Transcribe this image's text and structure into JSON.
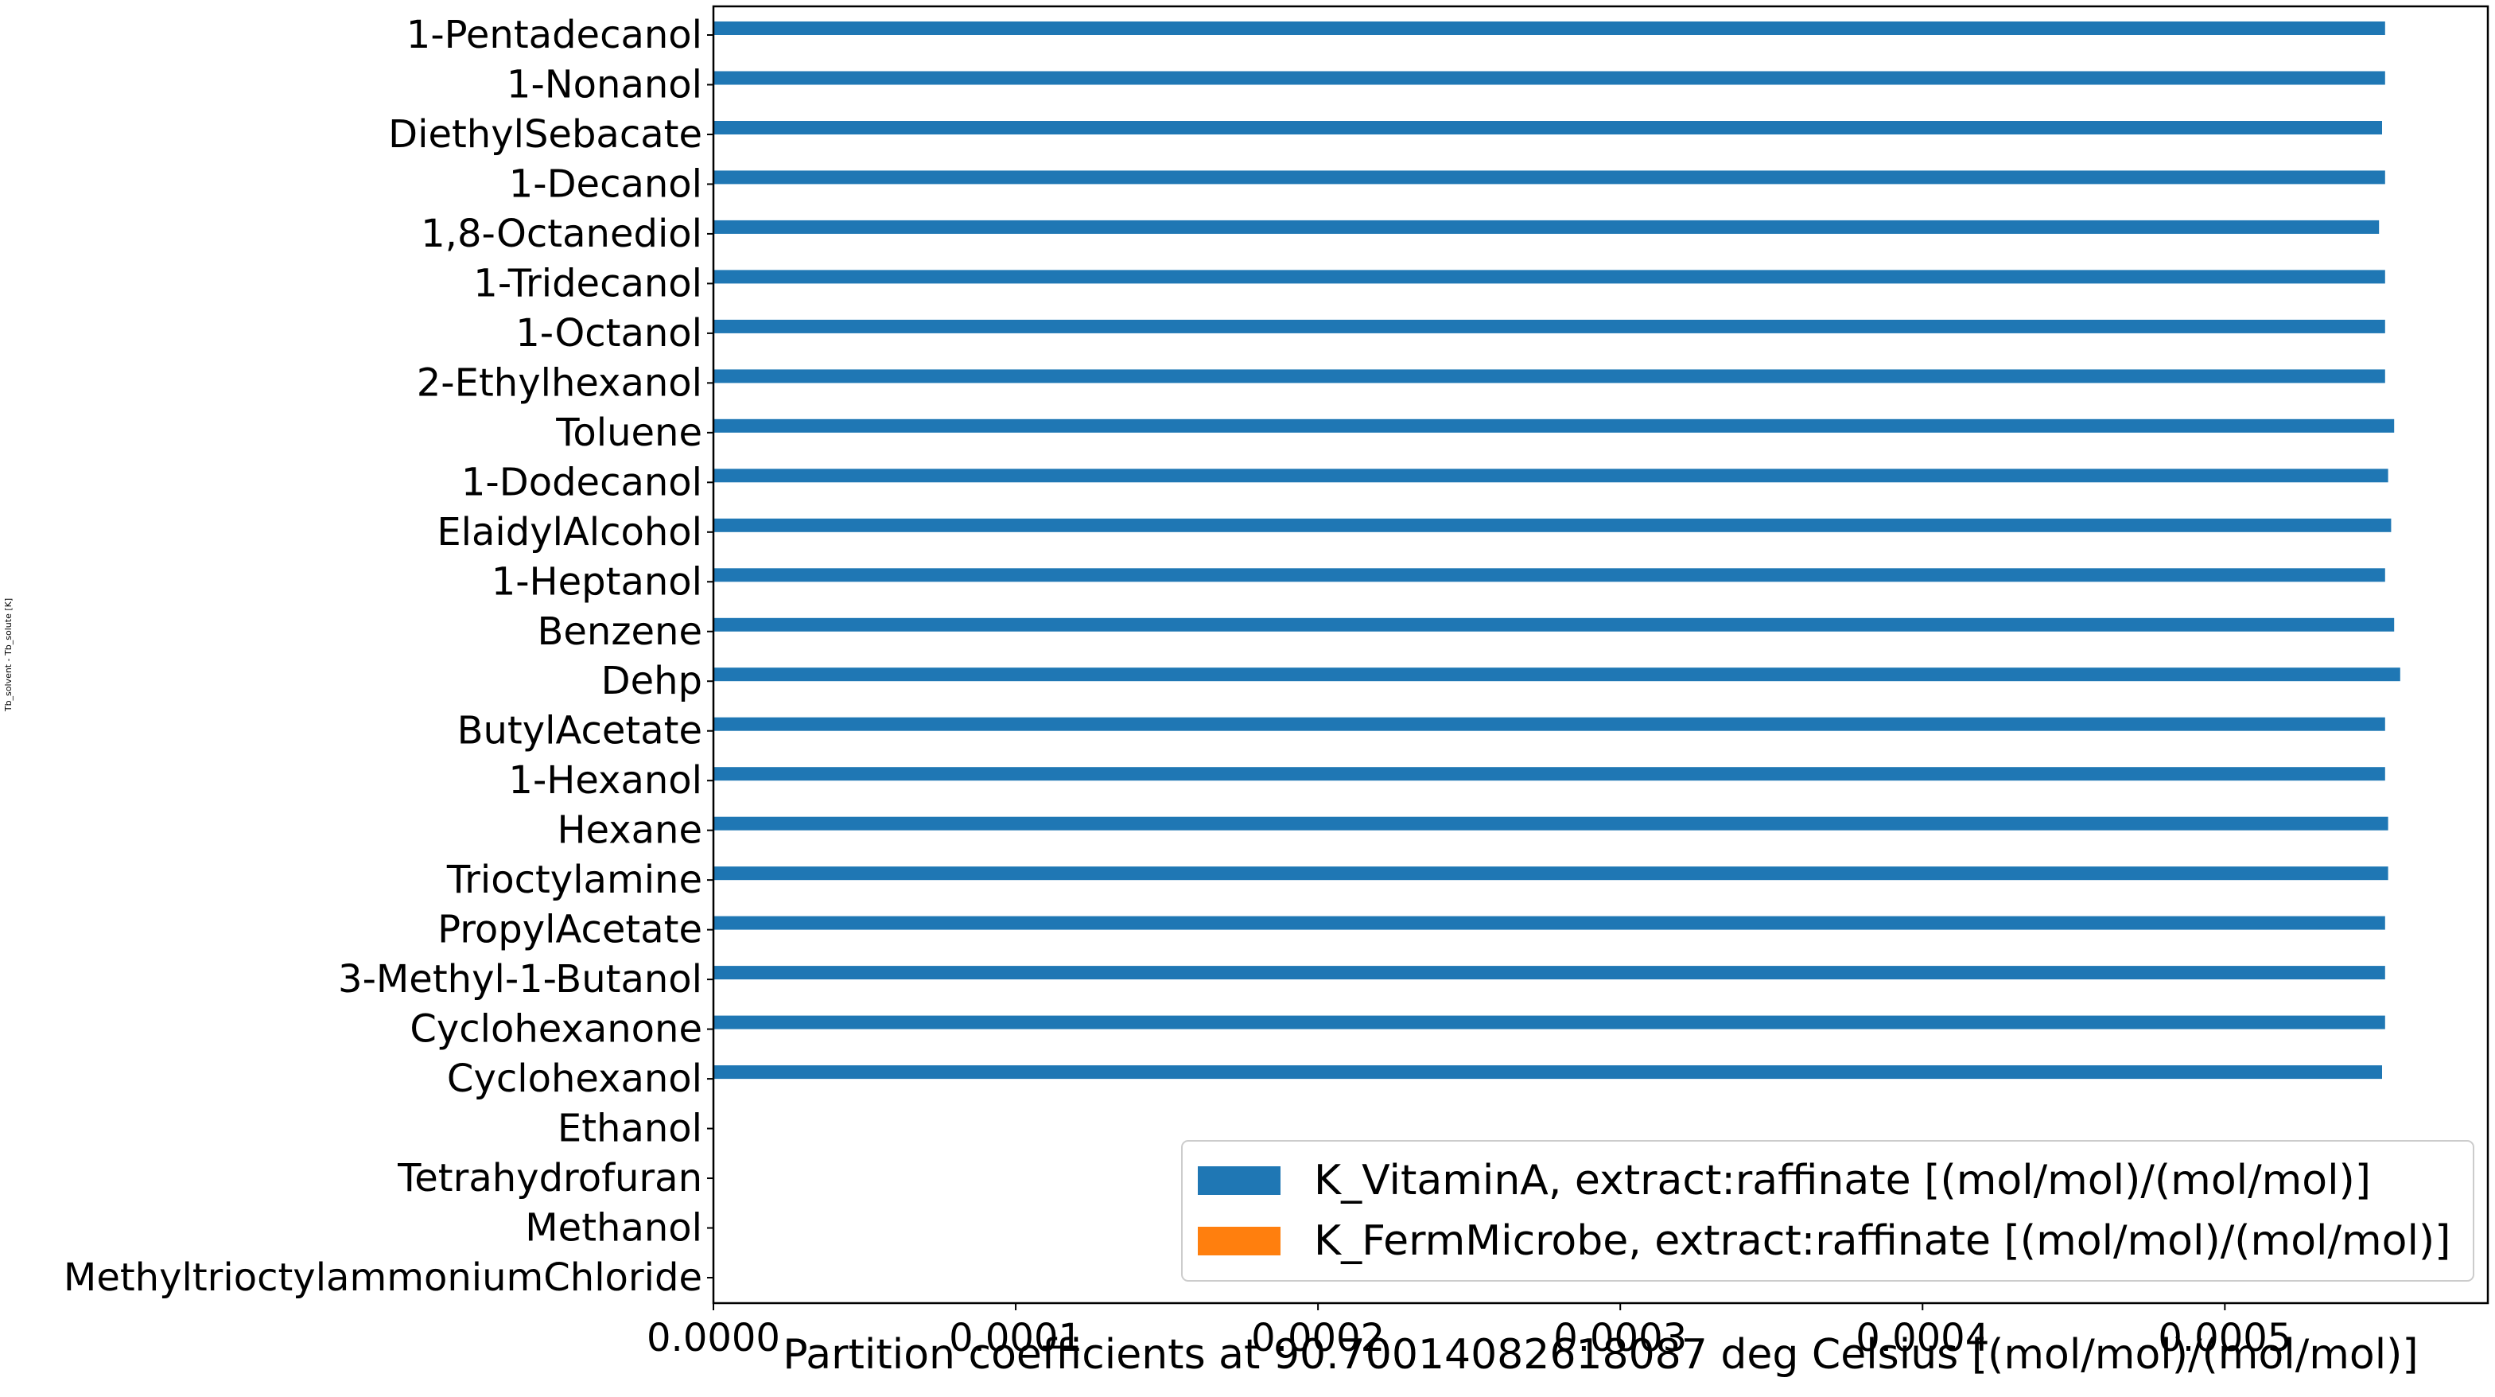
{
  "chart_data": {
    "type": "bar",
    "orientation": "horizontal",
    "categories": [
      "1-Pentadecanol",
      "1-Nonanol",
      "DiethylSebacate",
      "1-Decanol",
      "1,8-Octanediol",
      "1-Tridecanol",
      "1-Octanol",
      "2-Ethylhexanol",
      "Toluene",
      "1-Dodecanol",
      "ElaidylAlcohol",
      "1-Heptanol",
      "Benzene",
      "Dehp",
      "ButylAcetate",
      "1-Hexanol",
      "Hexane",
      "Trioctylamine",
      "PropylAcetate",
      "3-Methyl-1-Butanol",
      "Cyclohexanone",
      "Cyclohexanol",
      "Ethanol",
      "Tetrahydrofuran",
      "Methanol",
      "MethyltrioctylammoniumChloride"
    ],
    "series": [
      {
        "name": "K_VitaminA, extract:raffinate [(mol/mol)/(mol/mol)]",
        "color": "#1f77b4",
        "values": [
          0.000553,
          0.000553,
          0.000552,
          0.000553,
          0.000551,
          0.000553,
          0.000553,
          0.000553,
          0.000556,
          0.000554,
          0.000555,
          0.000553,
          0.000556,
          0.000558,
          0.000553,
          0.000553,
          0.000554,
          0.000554,
          0.000553,
          0.000553,
          0.000553,
          0.000552,
          0,
          0,
          0,
          0
        ]
      },
      {
        "name": "K_FermMicrobe, extract:raffinate [(mol/mol)/(mol/mol)]",
        "color": "#ff7f0e",
        "values": [
          0,
          0,
          0,
          0,
          0,
          0,
          0,
          0,
          0,
          0,
          0,
          0,
          0,
          0,
          0,
          0,
          0,
          0,
          0,
          0,
          0,
          0,
          0,
          0,
          0,
          0
        ]
      }
    ],
    "xticks": [
      "0.0000",
      "0.0001",
      "0.0002",
      "0.0003",
      "0.0004",
      "0.0005"
    ],
    "xtick_values": [
      0,
      0.0001,
      0.0002,
      0.0003,
      0.0004,
      0.0005
    ],
    "xlim": [
      0,
      0.000587
    ],
    "xlabel": "Partition coefficients at 90.70014082618087 deg Celsius [(mol/mol)/(mol/mol)]",
    "ylabel": "Tb_solvent - Tb_solute [K]",
    "title": "",
    "grid": false,
    "legend_position": "lower-right"
  }
}
